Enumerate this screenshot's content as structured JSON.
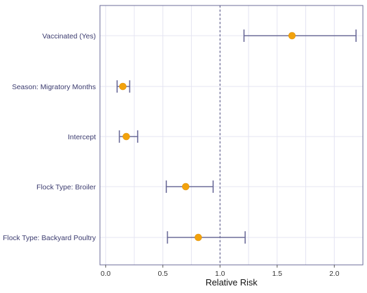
{
  "chart_data": {
    "type": "forest",
    "xlabel": "Relative Risk",
    "xlim": [
      -0.05,
      2.25
    ],
    "xticks": [
      0.0,
      0.5,
      1.0,
      1.5,
      2.0
    ],
    "xtick_labels": [
      "0.0",
      "0.5",
      "1.0",
      "1.5",
      "2.0"
    ],
    "reference_line": 1.0,
    "grid": true,
    "rows": [
      {
        "label": "Vaccinated (Yes)",
        "estimate": 1.63,
        "lower": 1.21,
        "upper": 2.19
      },
      {
        "label": "Season: Migratory Months",
        "estimate": 0.15,
        "lower": 0.1,
        "upper": 0.21
      },
      {
        "label": "Intercept",
        "estimate": 0.18,
        "lower": 0.12,
        "upper": 0.28
      },
      {
        "label": "Flock Type: Broiler",
        "estimate": 0.7,
        "lower": 0.53,
        "upper": 0.94
      },
      {
        "label": "Flock Type: Backyard Poultry",
        "estimate": 0.81,
        "lower": 0.54,
        "upper": 1.22
      }
    ],
    "colors": {
      "point": "#f2a20c",
      "interval": "#6b6b99",
      "frame": "#6b6b99",
      "grid": "#e4e4f2",
      "reference": "#4a4a7a"
    }
  }
}
